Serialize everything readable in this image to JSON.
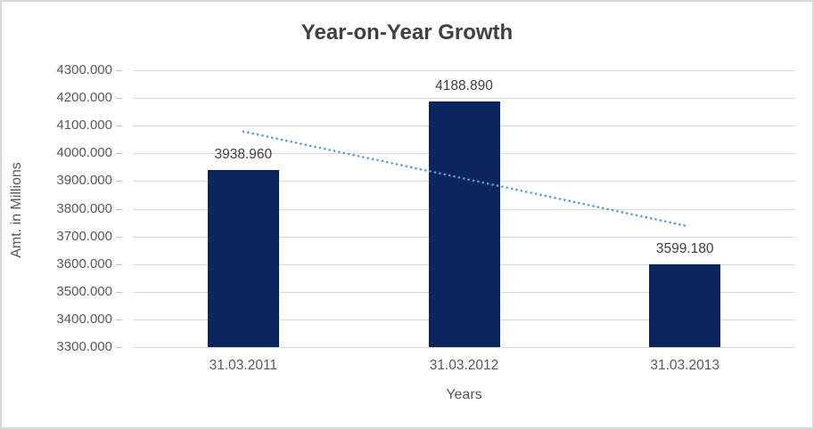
{
  "window": {
    "background": "#ffffff",
    "border_color": "#d9d9d9"
  },
  "chart_data": {
    "type": "bar",
    "title": "Year-on-Year Growth",
    "xlabel": "Years",
    "ylabel": "Amt. in Millions",
    "categories": [
      "31.03.2011",
      "31.03.2012",
      "31.03.2013"
    ],
    "values": [
      3938.96,
      4188.89,
      3599.18
    ],
    "data_labels": [
      "3938.960",
      "4188.890",
      "3599.180"
    ],
    "ylim": [
      3300,
      4300
    ],
    "ytick_step": 100,
    "ytick_labels": [
      "4300.000",
      "4200.000",
      "4100.000",
      "4000.000",
      "3900.000",
      "3800.000",
      "3700.000",
      "3600.000",
      "3500.000",
      "3400.000",
      "3300.000"
    ],
    "grid": true,
    "legend": "none",
    "trendline": {
      "style": "dotted",
      "color": "#5b9bd5",
      "start_value": 4078.9,
      "end_value": 3739.1
    },
    "colors": {
      "bar": "#0b265c",
      "gridline": "#d9d9d9",
      "tick": "#bfbfbf",
      "axis_text": "#595959",
      "label_text": "#404040",
      "title_text": "#404040"
    }
  }
}
